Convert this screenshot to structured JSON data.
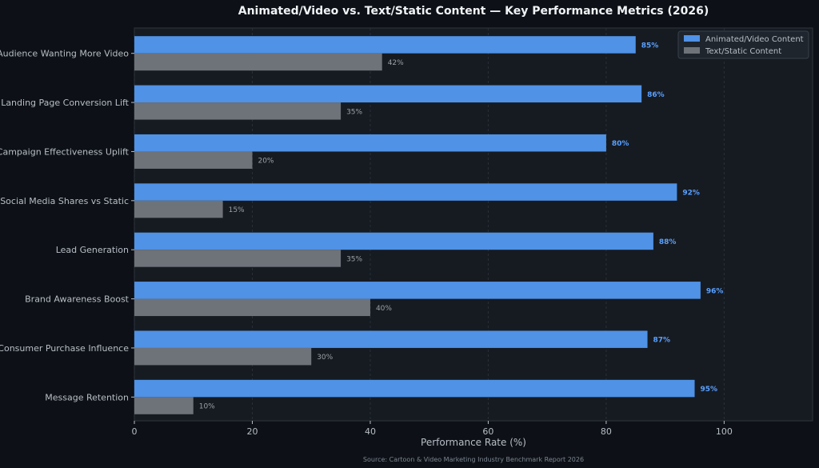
{
  "chart_data": {
    "type": "bar",
    "orientation": "horizontal",
    "title": "Animated/Video vs. Text/Static Content — Key Performance Metrics (2026)",
    "xlabel": "Performance Rate (%)",
    "ylabel": "",
    "xlim": [
      0,
      115
    ],
    "xticks": [
      "0",
      "20",
      "40",
      "60",
      "80",
      "100"
    ],
    "xtick_values": [
      0,
      20,
      40,
      60,
      80,
      100
    ],
    "grid": true,
    "legend_position": "top-right",
    "categories": [
      "Audience Wanting More Video",
      "Landing Page Conversion Lift",
      "Campaign Effectiveness Uplift",
      "Social Media Shares vs Static",
      "Lead Generation",
      "Brand Awareness Boost",
      "Consumer Purchase Influence",
      "Message Retention"
    ],
    "series": [
      {
        "name": "Animated/Video Content",
        "color": "#4f92e6",
        "label_color": "#5aa0ff",
        "values": [
          85,
          86,
          80,
          92,
          88,
          96,
          87,
          95
        ],
        "labels": [
          "85%",
          "86%",
          "80%",
          "92%",
          "88%",
          "96%",
          "87%",
          "95%"
        ]
      },
      {
        "name": "Text/Static Content",
        "color": "#6e7279",
        "label_color": "#9aa0a6",
        "values": [
          42,
          35,
          20,
          15,
          35,
          40,
          30,
          10
        ],
        "labels": [
          "42%",
          "35%",
          "20%",
          "15%",
          "35%",
          "40%",
          "30%",
          "10%"
        ]
      }
    ],
    "source": "Source: Cartoon & Video Marketing Industry Benchmark Report 2026"
  },
  "colors": {
    "page_background": "#0d1117",
    "plot_background": "#161b22",
    "axis_text": "#b8bec6",
    "title_text": "#f0f3f6",
    "source_text": "#7d8590",
    "grid": "#2a3038"
  }
}
